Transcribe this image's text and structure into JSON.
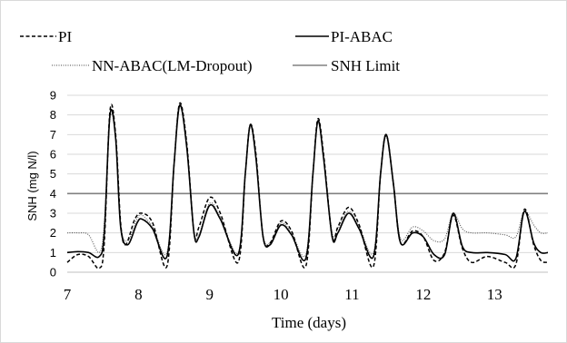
{
  "chart_data": {
    "type": "line",
    "xlabel": "Time (days)",
    "ylabel": "SNH (mg N/l)",
    "xlim": [
      7,
      13.75
    ],
    "ylim": [
      0,
      9
    ],
    "x_ticks": [
      "7",
      "8",
      "9",
      "10",
      "11",
      "12",
      "13"
    ],
    "y_ticks": [
      "0",
      "1",
      "2",
      "3",
      "4",
      "5",
      "6",
      "7",
      "8",
      "9"
    ],
    "grid": true,
    "legend_position": "top",
    "series": [
      {
        "name": "PI",
        "style": "dashed",
        "color": "#000000",
        "points": [
          [
            7.0,
            0.5
          ],
          [
            7.15,
            0.9
          ],
          [
            7.3,
            0.8
          ],
          [
            7.45,
            0.2
          ],
          [
            7.52,
            1.5
          ],
          [
            7.6,
            8.2
          ],
          [
            7.68,
            7.0
          ],
          [
            7.75,
            2.5
          ],
          [
            7.82,
            1.4
          ],
          [
            7.95,
            2.7
          ],
          [
            8.05,
            3.0
          ],
          [
            8.2,
            2.5
          ],
          [
            8.4,
            0.3
          ],
          [
            8.5,
            5.5
          ],
          [
            8.58,
            8.6
          ],
          [
            8.68,
            6.5
          ],
          [
            8.78,
            2.0
          ],
          [
            8.85,
            2.3
          ],
          [
            9.0,
            3.8
          ],
          [
            9.15,
            3.0
          ],
          [
            9.4,
            0.5
          ],
          [
            9.5,
            5.0
          ],
          [
            9.57,
            7.5
          ],
          [
            9.65,
            6.0
          ],
          [
            9.75,
            1.8
          ],
          [
            9.85,
            1.5
          ],
          [
            10.0,
            2.6
          ],
          [
            10.15,
            2.1
          ],
          [
            10.35,
            0.3
          ],
          [
            10.45,
            5.0
          ],
          [
            10.52,
            7.8
          ],
          [
            10.6,
            6.0
          ],
          [
            10.72,
            1.8
          ],
          [
            10.8,
            2.3
          ],
          [
            10.95,
            3.3
          ],
          [
            11.1,
            2.4
          ],
          [
            11.3,
            0.3
          ],
          [
            11.4,
            5.0
          ],
          [
            11.48,
            7.0
          ],
          [
            11.58,
            4.5
          ],
          [
            11.68,
            1.5
          ],
          [
            11.85,
            2.1
          ],
          [
            12.0,
            1.8
          ],
          [
            12.15,
            0.6
          ],
          [
            12.3,
            1.0
          ],
          [
            12.42,
            2.9
          ],
          [
            12.55,
            1.2
          ],
          [
            12.68,
            0.5
          ],
          [
            12.9,
            0.8
          ],
          [
            13.15,
            0.5
          ],
          [
            13.3,
            0.4
          ],
          [
            13.42,
            3.2
          ],
          [
            13.55,
            1.4
          ],
          [
            13.65,
            0.6
          ],
          [
            13.75,
            0.5
          ]
        ]
      },
      {
        "name": "PI-ABAC",
        "style": "solid",
        "color": "#000000",
        "points": [
          [
            7.0,
            1.0
          ],
          [
            7.15,
            1.05
          ],
          [
            7.3,
            1.0
          ],
          [
            7.45,
            0.8
          ],
          [
            7.52,
            2.0
          ],
          [
            7.6,
            8.0
          ],
          [
            7.68,
            6.8
          ],
          [
            7.75,
            2.3
          ],
          [
            7.85,
            1.4
          ],
          [
            7.98,
            2.5
          ],
          [
            8.05,
            2.7
          ],
          [
            8.2,
            2.2
          ],
          [
            8.4,
            0.8
          ],
          [
            8.5,
            5.5
          ],
          [
            8.58,
            8.5
          ],
          [
            8.68,
            6.3
          ],
          [
            8.78,
            2.0
          ],
          [
            8.85,
            1.8
          ],
          [
            9.0,
            3.4
          ],
          [
            9.15,
            2.7
          ],
          [
            9.4,
            0.9
          ],
          [
            9.5,
            5.0
          ],
          [
            9.57,
            7.5
          ],
          [
            9.65,
            5.8
          ],
          [
            9.75,
            1.8
          ],
          [
            9.85,
            1.4
          ],
          [
            10.0,
            2.4
          ],
          [
            10.15,
            1.9
          ],
          [
            10.35,
            0.7
          ],
          [
            10.45,
            5.0
          ],
          [
            10.52,
            7.7
          ],
          [
            10.6,
            5.8
          ],
          [
            10.72,
            1.8
          ],
          [
            10.8,
            2.0
          ],
          [
            10.95,
            3.0
          ],
          [
            11.1,
            2.2
          ],
          [
            11.3,
            0.8
          ],
          [
            11.4,
            5.0
          ],
          [
            11.48,
            7.0
          ],
          [
            11.58,
            4.5
          ],
          [
            11.68,
            1.5
          ],
          [
            11.85,
            2.0
          ],
          [
            12.0,
            1.8
          ],
          [
            12.15,
            0.9
          ],
          [
            12.3,
            0.9
          ],
          [
            12.42,
            3.0
          ],
          [
            12.55,
            1.3
          ],
          [
            12.68,
            1.0
          ],
          [
            12.9,
            1.0
          ],
          [
            13.15,
            0.9
          ],
          [
            13.3,
            0.7
          ],
          [
            13.42,
            3.1
          ],
          [
            13.55,
            1.5
          ],
          [
            13.65,
            1.0
          ],
          [
            13.75,
            1.0
          ]
        ]
      },
      {
        "name": "NN-ABAC(LM-Dropout)",
        "style": "dotted",
        "color": "#555555",
        "points": [
          [
            7.0,
            2.0
          ],
          [
            7.15,
            2.0
          ],
          [
            7.3,
            1.9
          ],
          [
            7.45,
            1.0
          ],
          [
            7.52,
            2.5
          ],
          [
            7.6,
            7.8
          ],
          [
            7.68,
            6.8
          ],
          [
            7.75,
            2.4
          ],
          [
            7.85,
            1.6
          ],
          [
            7.98,
            2.7
          ],
          [
            8.05,
            2.9
          ],
          [
            8.2,
            2.3
          ],
          [
            8.4,
            1.0
          ],
          [
            8.5,
            5.5
          ],
          [
            8.58,
            8.4
          ],
          [
            8.68,
            6.3
          ],
          [
            8.78,
            2.0
          ],
          [
            8.85,
            1.9
          ],
          [
            9.0,
            3.5
          ],
          [
            9.15,
            2.8
          ],
          [
            9.4,
            1.0
          ],
          [
            9.5,
            5.0
          ],
          [
            9.57,
            7.4
          ],
          [
            9.65,
            5.8
          ],
          [
            9.75,
            1.9
          ],
          [
            9.85,
            1.5
          ],
          [
            10.0,
            2.5
          ],
          [
            10.15,
            2.0
          ],
          [
            10.35,
            0.9
          ],
          [
            10.45,
            5.0
          ],
          [
            10.52,
            7.6
          ],
          [
            10.6,
            5.8
          ],
          [
            10.72,
            2.0
          ],
          [
            10.8,
            2.2
          ],
          [
            10.95,
            3.1
          ],
          [
            11.1,
            2.3
          ],
          [
            11.3,
            1.0
          ],
          [
            11.4,
            5.0
          ],
          [
            11.48,
            6.9
          ],
          [
            11.58,
            4.6
          ],
          [
            11.68,
            1.7
          ],
          [
            11.85,
            2.3
          ],
          [
            12.0,
            2.1
          ],
          [
            12.15,
            1.6
          ],
          [
            12.3,
            1.7
          ],
          [
            12.42,
            3.0
          ],
          [
            12.55,
            2.2
          ],
          [
            12.68,
            2.0
          ],
          [
            12.9,
            2.0
          ],
          [
            13.15,
            1.9
          ],
          [
            13.3,
            1.8
          ],
          [
            13.42,
            3.1
          ],
          [
            13.55,
            2.4
          ],
          [
            13.65,
            2.0
          ],
          [
            13.75,
            2.0
          ]
        ]
      },
      {
        "name": "SNH Limit",
        "style": "solid",
        "color": "#808080",
        "points": [
          [
            7.0,
            4.0
          ],
          [
            13.75,
            4.0
          ]
        ]
      }
    ]
  }
}
